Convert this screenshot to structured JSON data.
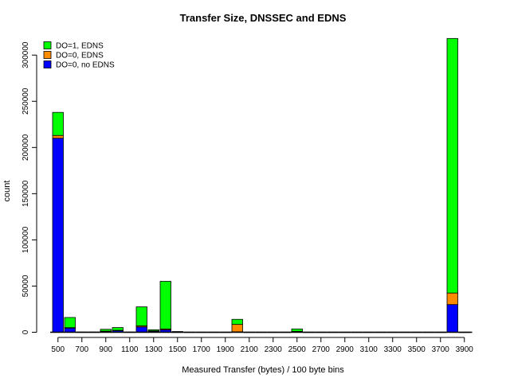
{
  "chart_data": {
    "type": "bar",
    "stacked": true,
    "title": "Transfer Size, DNSSEC and EDNS",
    "xlabel": "Measured Transfer (bytes) / 100 byte bins",
    "ylabel": "count",
    "ylim": [
      0,
      320000
    ],
    "yticks": [
      0,
      50000,
      100000,
      150000,
      200000,
      250000,
      300000
    ],
    "x_tick_labels": [
      "500",
      "700",
      "900",
      "1100",
      "1300",
      "1500",
      "1700",
      "1900",
      "2100",
      "2300",
      "2500",
      "2700",
      "2900",
      "3100",
      "3300",
      "3500",
      "3700",
      "3900"
    ],
    "categories": [
      "500",
      "600",
      "700",
      "800",
      "900",
      "1000",
      "1100",
      "1200",
      "1300",
      "1400",
      "1500",
      "1600",
      "1700",
      "1800",
      "1900",
      "2000",
      "2100",
      "2200",
      "2300",
      "2400",
      "2500",
      "2600",
      "2700",
      "2800",
      "2900",
      "3000",
      "3100",
      "3200",
      "3300",
      "3400",
      "3500",
      "3600",
      "3700",
      "3800",
      "3900"
    ],
    "legend_position": "top-left",
    "series": [
      {
        "name": "DO=0, no EDNS",
        "color": "#0000ff",
        "values": [
          210000,
          4500,
          300,
          300,
          1000,
          1800,
          300,
          5800,
          1200,
          2600,
          300,
          200,
          200,
          200,
          200,
          500,
          200,
          200,
          200,
          200,
          600,
          200,
          200,
          200,
          200,
          200,
          200,
          200,
          200,
          200,
          200,
          200,
          200,
          30000,
          200
        ]
      },
      {
        "name": "DO=0, EDNS",
        "color": "#ff8c00",
        "values": [
          3000,
          500,
          0,
          0,
          200,
          300,
          0,
          1200,
          300,
          1000,
          0,
          0,
          0,
          0,
          0,
          8000,
          0,
          0,
          0,
          0,
          300,
          0,
          0,
          0,
          0,
          0,
          0,
          0,
          0,
          0,
          0,
          0,
          0,
          12500,
          0
        ]
      },
      {
        "name": "DO=1, EDNS",
        "color": "#00ff00",
        "values": [
          25000,
          11000,
          0,
          0,
          2000,
          3000,
          0,
          20500,
          1200,
          51500,
          500,
          0,
          0,
          0,
          0,
          5500,
          0,
          0,
          0,
          0,
          2700,
          0,
          0,
          0,
          0,
          0,
          0,
          0,
          0,
          0,
          0,
          0,
          0,
          275500,
          0
        ]
      }
    ],
    "grid": false
  }
}
